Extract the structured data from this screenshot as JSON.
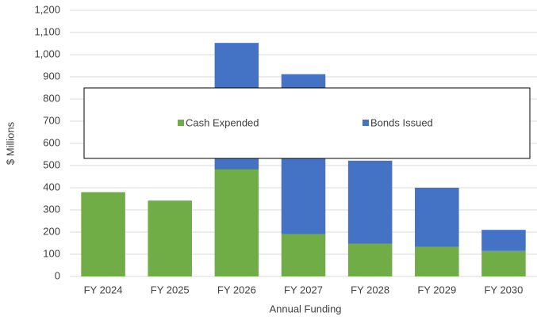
{
  "chart_data": {
    "type": "stacked_bar",
    "x_label": "Annual Funding",
    "y_label": "$ Millions",
    "categories": [
      "FY 2024",
      "FY 2025",
      "FY 2026",
      "FY 2027",
      "FY 2028",
      "FY 2029",
      "FY 2030"
    ],
    "series": [
      {
        "name": "Cash Expended",
        "color": "#70ad47",
        "values": [
          380,
          342,
          482,
          190,
          147,
          133,
          115
        ]
      },
      {
        "name": "Bonds Issued",
        "color": "#4472c4",
        "values": [
          0,
          0,
          571,
          722,
          375,
          267,
          95
        ]
      }
    ],
    "ylim": [
      0,
      1200
    ],
    "yticks": [
      0,
      100,
      200,
      300,
      400,
      500,
      600,
      700,
      800,
      900,
      {
        "value": 1000,
        "label": "1,000"
      },
      {
        "value": 1100,
        "label": "1,100"
      },
      {
        "value": 1200,
        "label": "1,200"
      }
    ],
    "grid": true
  }
}
